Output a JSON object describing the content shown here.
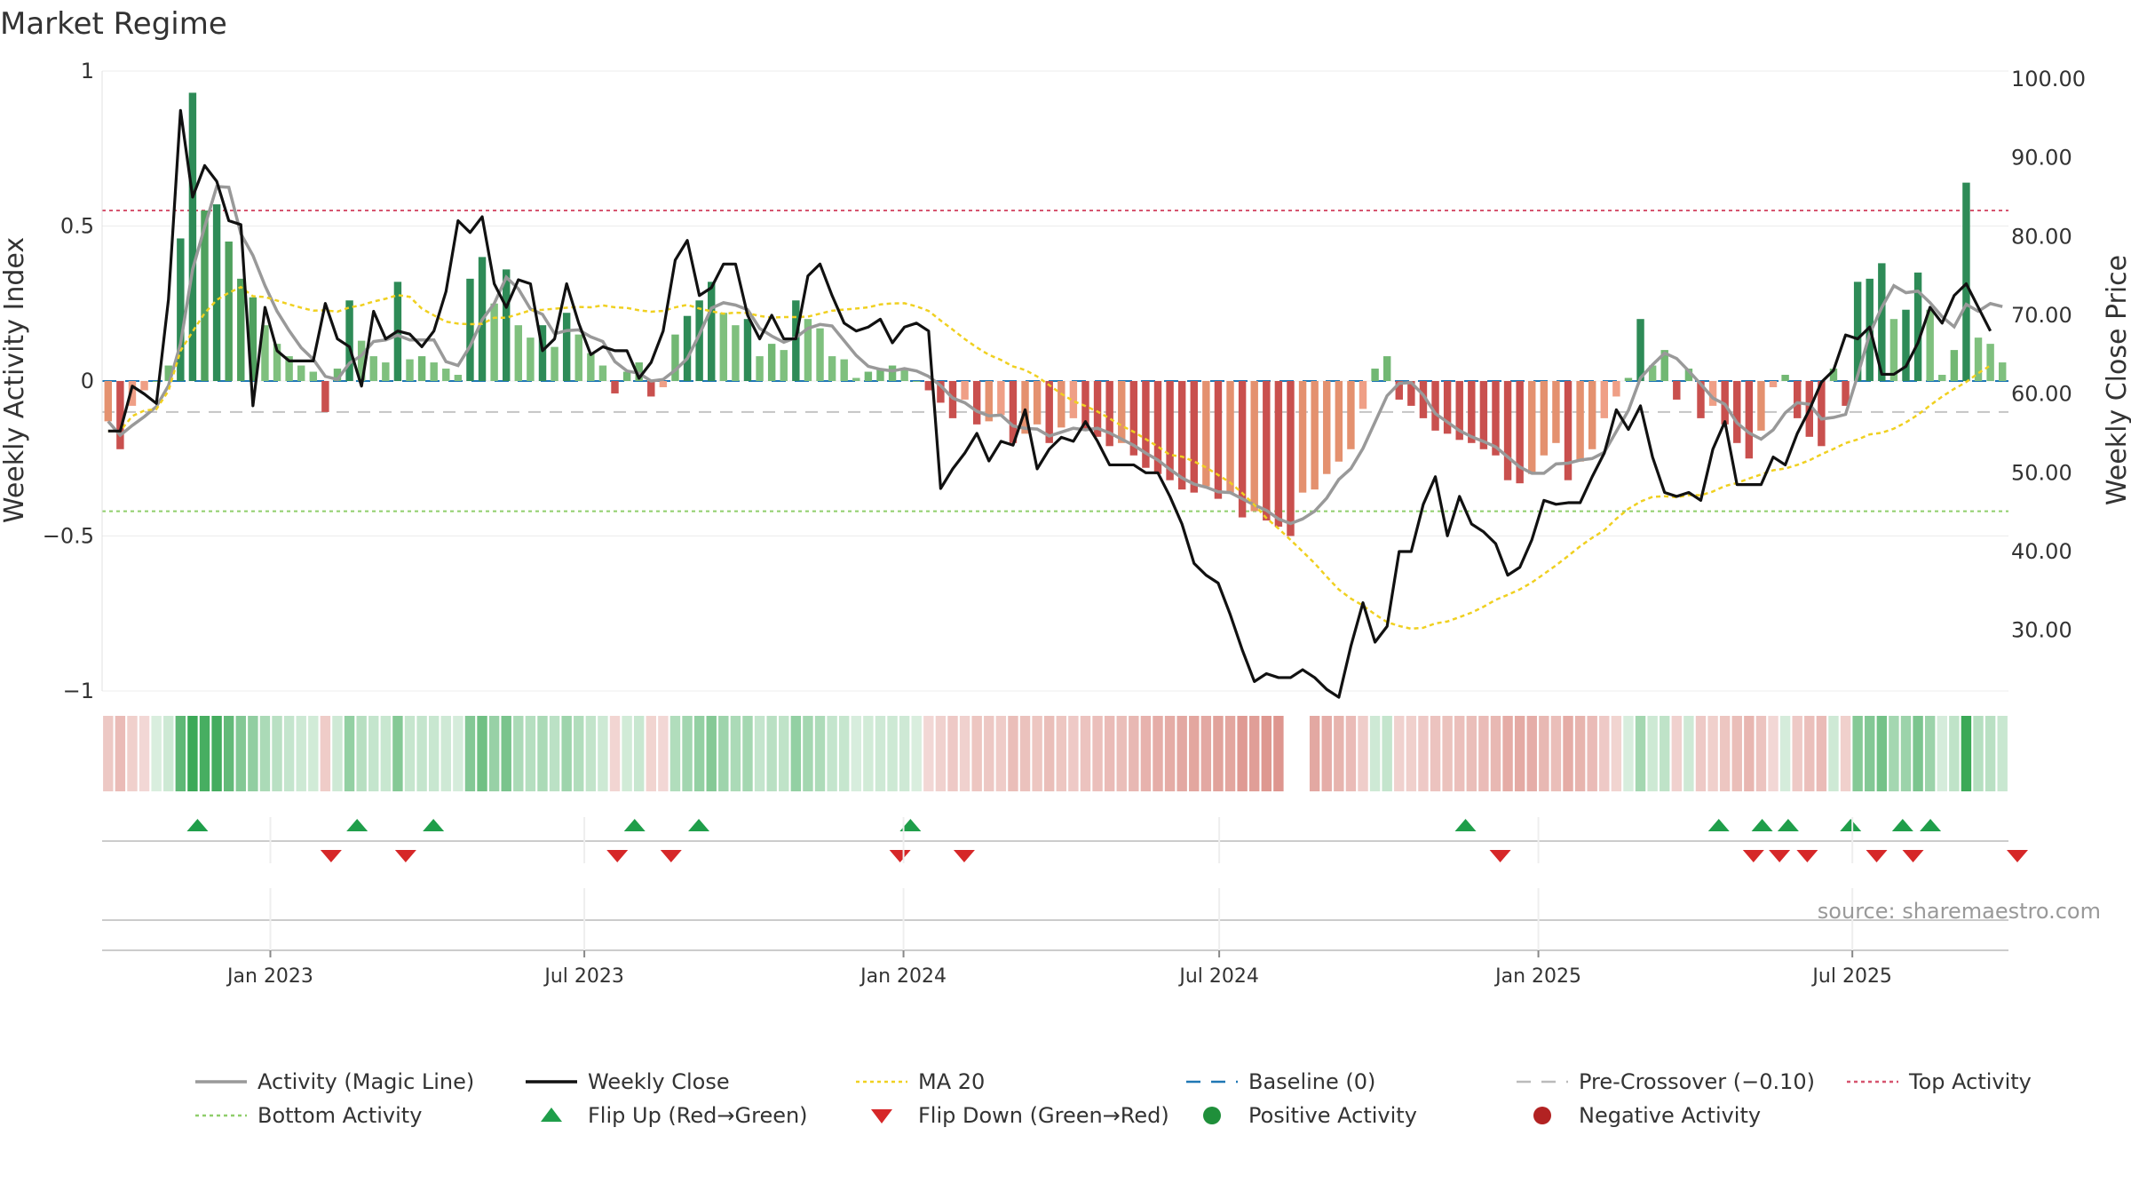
{
  "chart_data": {
    "type": "bar",
    "title": "Market Regime",
    "ylabel_left": "Weekly Activity Index",
    "ylabel_right": "Weekly Close Price",
    "left_ylim": [
      -1,
      1
    ],
    "left_ticks": [
      "1",
      "0.5",
      "0",
      "−0.5",
      "−1"
    ],
    "left_tick_values": [
      1,
      0.5,
      0,
      -0.5,
      -1
    ],
    "right_ylim": [
      22.3,
      101.0
    ],
    "right_ticks": [
      "100.00",
      "90.00",
      "80.00",
      "70.00",
      "60.00",
      "50.00",
      "40.00",
      "30.00"
    ],
    "right_tick_values": [
      100,
      90,
      80,
      70,
      60,
      50,
      40,
      30
    ],
    "x_start": "2022-09-26",
    "x_end": "2025-09-29",
    "x_tick_labels": [
      "Jan 2023",
      "Jul 2023",
      "Jan 2024",
      "Jul 2024",
      "Jan 2025",
      "Jul 2025"
    ],
    "x_tick_dates": [
      "2023-01-01",
      "2023-07-01",
      "2024-01-01",
      "2024-07-01",
      "2025-01-01",
      "2025-07-01"
    ],
    "top_activity": 0.55,
    "bottom_activity": -0.42,
    "pre_crossover": -0.1,
    "baseline": 0,
    "activity": [
      -0.13,
      -0.22,
      -0.08,
      -0.03,
      0,
      0.05,
      0.46,
      0.93,
      0.55,
      0.57,
      0.45,
      0.33,
      0.27,
      0.18,
      0.12,
      0.08,
      0.05,
      0.03,
      -0.1,
      0.04,
      0.26,
      0.13,
      0.08,
      0.06,
      0.32,
      0.07,
      0.08,
      0.06,
      0.04,
      0.02,
      0.33,
      0.4,
      0.25,
      0.36,
      0.18,
      0.14,
      0.18,
      0.11,
      0.22,
      0.15,
      0.09,
      0.05,
      -0.04,
      0.03,
      0.06,
      -0.05,
      -0.02,
      0.15,
      0.21,
      0.26,
      0.32,
      0.22,
      0.18,
      0.2,
      0.08,
      0.12,
      0.1,
      0.26,
      0.2,
      0.17,
      0.08,
      0.07,
      0.01,
      0.03,
      0.04,
      0.05,
      0.04,
      0,
      -0.03,
      -0.07,
      -0.12,
      -0.06,
      -0.14,
      -0.13,
      -0.11,
      -0.2,
      -0.17,
      -0.14,
      -0.2,
      -0.15,
      -0.12,
      -0.16,
      -0.18,
      -0.21,
      -0.2,
      -0.24,
      -0.28,
      -0.3,
      -0.32,
      -0.35,
      -0.36,
      -0.34,
      -0.38,
      -0.36,
      -0.44,
      -0.42,
      -0.45,
      -0.47,
      -0.5,
      -0.36,
      -0.35,
      -0.3,
      -0.26,
      -0.22,
      -0.09,
      0.04,
      0.08,
      -0.06,
      -0.08,
      -0.12,
      -0.16,
      -0.17,
      -0.19,
      -0.2,
      -0.22,
      -0.24,
      -0.32,
      -0.33,
      -0.3,
      -0.24,
      -0.2,
      -0.32,
      -0.26,
      -0.22,
      -0.12,
      -0.05,
      0.01,
      0.2,
      0.05,
      0.1,
      -0.06,
      0.04,
      -0.12,
      -0.08,
      -0.14,
      -0.2,
      -0.25,
      -0.16,
      -0.02,
      0.02,
      -0.12,
      -0.18,
      -0.21,
      0.04,
      -0.08,
      0.32,
      0.33,
      0.38,
      0.2,
      0.23,
      0.35,
      0.23,
      0.02,
      0.1,
      0.64,
      0.14,
      0.12,
      0.06
    ],
    "weekly_close": [
      55.3,
      55.3,
      61.0,
      60.0,
      58.8,
      72.0,
      96.0,
      85.0,
      89.0,
      87.0,
      82.0,
      81.5,
      58.5,
      71.0,
      65.5,
      64.2,
      64.2,
      64.2,
      71.5,
      67.0,
      66.0,
      61.0,
      70.5,
      67.0,
      68.0,
      67.6,
      66.0,
      68.0,
      73.0,
      82.0,
      80.5,
      82.5,
      74.0,
      71.0,
      74.5,
      74.0,
      65.5,
      67.0,
      74.0,
      69.0,
      65.0,
      66.0,
      65.5,
      65.5,
      62.0,
      64.0,
      68.0,
      77.0,
      79.5,
      72.5,
      73.5,
      76.5,
      76.5,
      70.0,
      67.0,
      70.0,
      67.0,
      67.0,
      75.0,
      76.5,
      72.5,
      69.0,
      68.0,
      68.5,
      69.5,
      66.5,
      68.5,
      69.0,
      68.0,
      48.0,
      50.5,
      52.5,
      55.0,
      51.5,
      54.0,
      53.5,
      58.0,
      50.5,
      53.0,
      54.5,
      54.0,
      56.5,
      54.0,
      51.0,
      51.0,
      51.0,
      50.0,
      50.0,
      47.0,
      43.5,
      38.5,
      37.0,
      36.0,
      32.0,
      27.5,
      23.5,
      24.5,
      24.0,
      24.0,
      25.0,
      24.0,
      22.5,
      21.5,
      28.0,
      33.5,
      28.5,
      30.5,
      40.0,
      40.0,
      46.0,
      49.5,
      42.0,
      47.0,
      43.5,
      42.5,
      41.0,
      37.0,
      38.0,
      41.5,
      46.5,
      46.0,
      46.2,
      46.2,
      49.5,
      52.5,
      58.0,
      55.5,
      58.5,
      52.0,
      47.5,
      47.0,
      47.5,
      46.5,
      53.0,
      56.5,
      48.5,
      48.5,
      48.5,
      52.0,
      51.0,
      55.0,
      58.0,
      61.5,
      63.0,
      67.5,
      67.0,
      68.5,
      62.5,
      62.5,
      63.5,
      66.5,
      71.0,
      69.0,
      72.5,
      74.0,
      71.0,
      68.0
    ],
    "magic_line_endpoints": [
      -0.13,
      0.15
    ],
    "ma20_label": "MA 20",
    "regime_strip": "color-coded weekly activity",
    "flip_up_dates": [
      "2022-11-20",
      "2023-02-20",
      "2023-04-05",
      "2023-07-30",
      "2023-09-05",
      "2024-01-05",
      "2024-11-20",
      "2025-04-15",
      "2025-05-10",
      "2025-05-25",
      "2025-06-30",
      "2025-07-30",
      "2025-08-15"
    ],
    "flip_down_dates": [
      "2023-02-05",
      "2023-03-20",
      "2023-07-20",
      "2023-08-20",
      "2023-12-30",
      "2024-02-05",
      "2024-12-10",
      "2025-05-05",
      "2025-05-20",
      "2025-06-05",
      "2025-07-15",
      "2025-08-05",
      "2025-10-05"
    ],
    "source": "source: sharemaestro.com",
    "legend": [
      {
        "label": "Activity (Magic Line)",
        "style": "line",
        "color": "#999999"
      },
      {
        "label": "Weekly Close",
        "style": "line",
        "color": "#111111"
      },
      {
        "label": "MA 20",
        "style": "dotted",
        "color": "#f0d020"
      },
      {
        "label": "Baseline (0)",
        "style": "dashed",
        "color": "#1f77b4"
      },
      {
        "label": "Pre-Crossover (−0.10)",
        "style": "dashed",
        "color": "#bbbbbb"
      },
      {
        "label": "Top Activity",
        "style": "dotted",
        "color": "#d6546f"
      },
      {
        "label": "Bottom Activity",
        "style": "dotted",
        "color": "#8fce6b"
      },
      {
        "label": "Flip Up (Red→Green)",
        "style": "triangle-up",
        "color": "#1f9e4a"
      },
      {
        "label": "Flip Down (Green→Red)",
        "style": "triangle-down",
        "color": "#d62728"
      },
      {
        "label": "Positive Activity",
        "style": "circle",
        "color": "#1f8f3a"
      },
      {
        "label": "Negative Activity",
        "style": "circle",
        "color": "#b22222"
      }
    ]
  }
}
